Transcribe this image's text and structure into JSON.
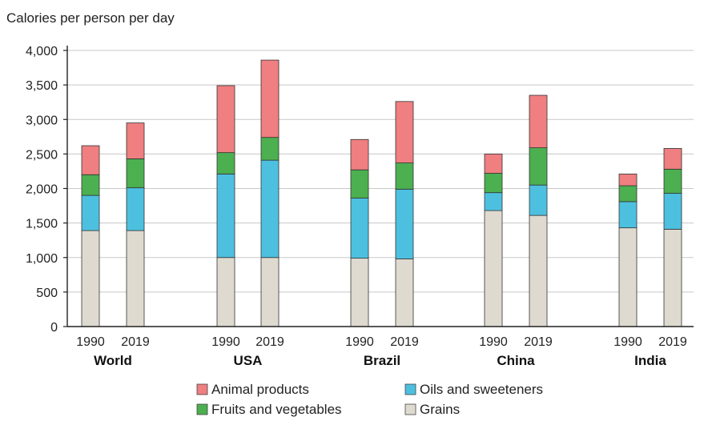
{
  "chart_data": {
    "type": "bar",
    "stacked": true,
    "ylabel": "Calories per person per day",
    "ylim": [
      0,
      4000
    ],
    "yticks": [
      0,
      500,
      1000,
      1500,
      2000,
      2500,
      3000,
      3500,
      4000
    ],
    "ytick_labels": [
      "0",
      "500",
      "1,000",
      "1,500",
      "2,000",
      "2,500",
      "3,000",
      "3,500",
      "4,000"
    ],
    "grid": "horizontal",
    "legend_position": "bottom",
    "groups": [
      "World",
      "USA",
      "Brazil",
      "China",
      "India"
    ],
    "years": [
      "1990",
      "2019"
    ],
    "categories": [
      "World 1990",
      "World 2019",
      "USA 1990",
      "USA 2019",
      "Brazil 1990",
      "Brazil 2019",
      "China 1990",
      "China 2019",
      "India 1990",
      "India 2019"
    ],
    "series": [
      {
        "name": "Grains",
        "color": "#dedad0",
        "values": [
          1390,
          1390,
          1000,
          1000,
          990,
          980,
          1680,
          1610,
          1430,
          1410
        ]
      },
      {
        "name": "Oils and sweeteners",
        "color": "#4dc0e0",
        "values": [
          510,
          620,
          1210,
          1410,
          870,
          1010,
          260,
          440,
          380,
          520
        ]
      },
      {
        "name": "Fruits and vegetables",
        "color": "#4caf50",
        "values": [
          300,
          420,
          310,
          330,
          410,
          380,
          280,
          540,
          230,
          350
        ]
      },
      {
        "name": "Animal products",
        "color": "#ef7f80",
        "values": [
          420,
          520,
          970,
          1120,
          440,
          890,
          280,
          760,
          170,
          300
        ]
      }
    ],
    "legend_order": [
      "Animal products",
      "Oils and sweeteners",
      "Fruits and vegetables",
      "Grains"
    ]
  }
}
